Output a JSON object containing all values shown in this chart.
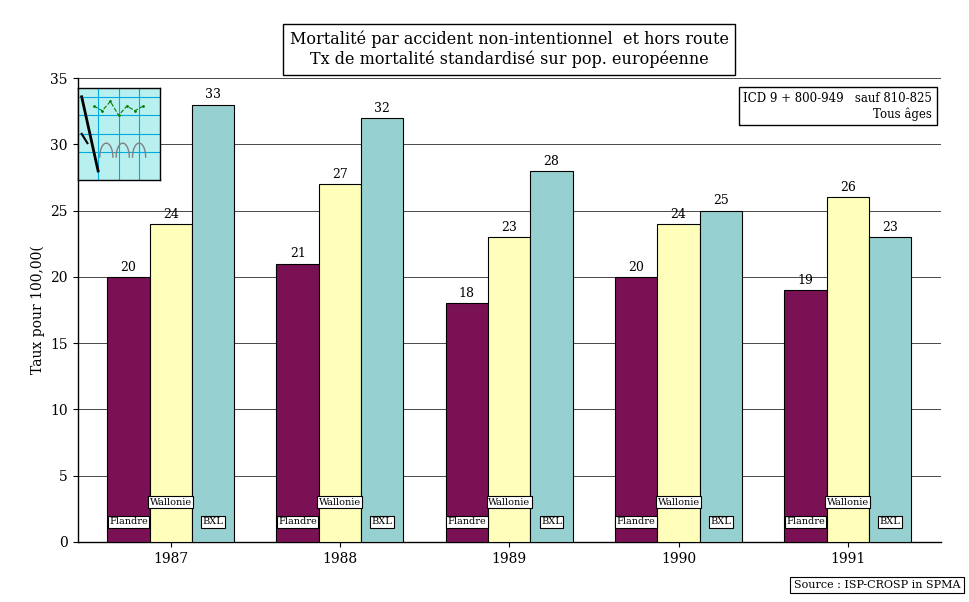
{
  "title_line1": "Mortalité par accident non-intentionnel  et hors route",
  "title_line2": "Tx de mortalité standardisé sur pop. européenne",
  "years": [
    "1987",
    "1988",
    "1989",
    "1990",
    "1991"
  ],
  "categories": [
    "Flandre",
    "Wallonie",
    "BXL"
  ],
  "values": {
    "Flandre": [
      20,
      21,
      18,
      20,
      19
    ],
    "Wallonie": [
      24,
      27,
      23,
      24,
      26
    ],
    "BXL": [
      33,
      32,
      28,
      25,
      23
    ]
  },
  "colors": {
    "Flandre": "#7B1155",
    "Wallonie": "#FFFFBB",
    "BXL": "#96D0D0"
  },
  "ylabel": "Taux pour 100,00(",
  "ylim": [
    0,
    35
  ],
  "yticks": [
    0,
    5,
    10,
    15,
    20,
    25,
    30,
    35
  ],
  "legend_text_line1": "ICD 9 + 800-949   sauf 810-825",
  "legend_text_line2": "Tous âges",
  "source_text": "Source : ISP-CROSP in SPMA",
  "background_color": "#FFFFFF",
  "bar_edge_color": "#000000",
  "title_fontsize": 11.5,
  "axis_fontsize": 10,
  "label_fontsize": 9,
  "bar_label_fontsize": 8,
  "cat_label_fontsize": 7,
  "group_width": 0.75
}
